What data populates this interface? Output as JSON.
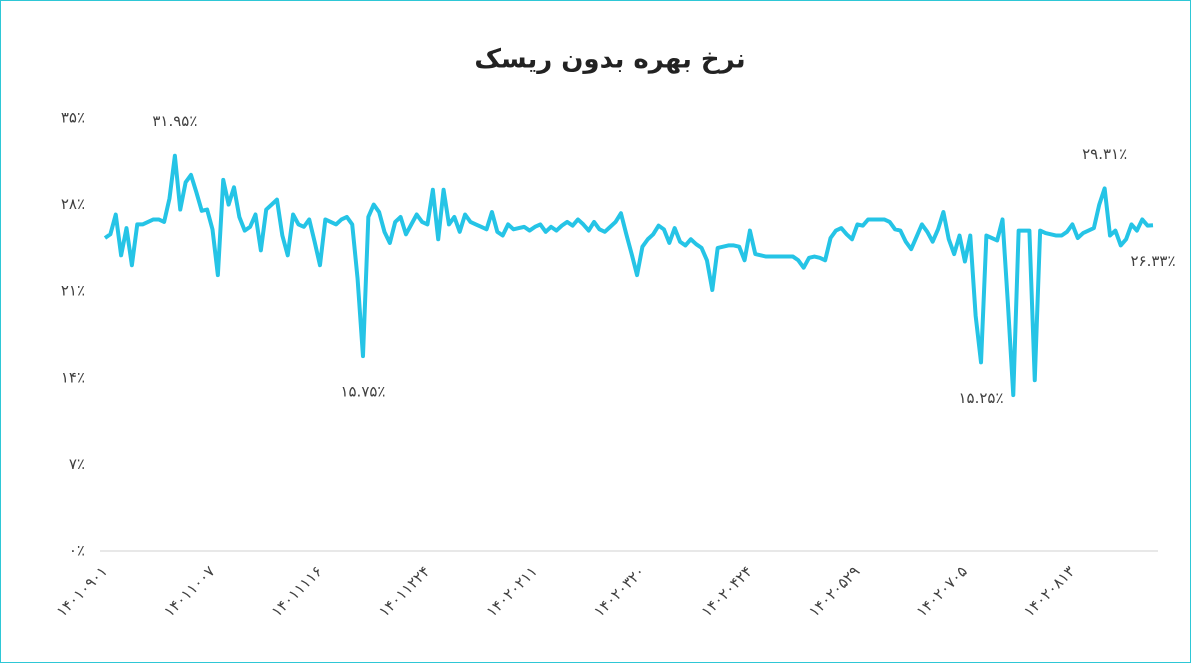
{
  "chart_data": {
    "type": "line",
    "title": "نرخ بهره بدون ریسک",
    "categories": [
      "۱۴۰۱۰۹۰۱",
      null,
      null,
      null,
      null,
      null,
      null,
      null,
      null,
      null,
      null,
      null,
      null,
      null,
      null,
      null,
      null,
      null,
      null,
      null,
      "۱۴۰۱۱۰۰۷",
      null,
      null,
      null,
      null,
      null,
      null,
      null,
      null,
      null,
      null,
      null,
      null,
      null,
      null,
      null,
      null,
      null,
      null,
      null,
      "۱۴۰۱۱۱۱۶",
      null,
      null,
      null,
      null,
      null,
      null,
      null,
      null,
      null,
      null,
      null,
      null,
      null,
      null,
      null,
      null,
      null,
      null,
      null,
      "۱۴۰۱۱۲۲۴",
      null,
      null,
      null,
      null,
      null,
      null,
      null,
      null,
      null,
      null,
      null,
      null,
      null,
      null,
      null,
      null,
      null,
      null,
      null,
      "۱۴۰۲۰۲۱۱",
      null,
      null,
      null,
      null,
      null,
      null,
      null,
      null,
      null,
      null,
      null,
      null,
      null,
      null,
      null,
      null,
      null,
      null,
      null,
      "۱۴۰۲۰۳۲۰",
      null,
      null,
      null,
      null,
      null,
      null,
      null,
      null,
      null,
      null,
      null,
      null,
      null,
      null,
      null,
      null,
      null,
      null,
      null,
      "۱۴۰۲۰۴۲۴",
      null,
      null,
      null,
      null,
      null,
      null,
      null,
      null,
      null,
      null,
      null,
      null,
      null,
      null,
      null,
      null,
      null,
      null,
      null,
      "۱۴۰۲۰۵۲۹",
      null,
      null,
      null,
      null,
      null,
      null,
      null,
      null,
      null,
      null,
      null,
      null,
      null,
      null,
      null,
      null,
      null,
      null,
      null,
      "۱۴۰۲۰۷۰۵",
      null,
      null,
      null,
      null,
      null,
      null,
      null,
      null,
      null,
      null,
      null,
      null,
      null,
      null,
      null,
      null,
      null,
      null,
      null,
      "۱۴۰۲۰۸۱۳",
      null,
      null,
      null,
      null,
      null,
      null,
      null,
      null,
      null,
      null,
      null,
      null,
      null,
      null,
      null
    ],
    "series": [
      {
        "color": "#25c4e6",
        "values": [
          25.3,
          25.6,
          27.2,
          23.9,
          26.1,
          23.1,
          26.4,
          26.4,
          26.6,
          26.8,
          26.8,
          26.6,
          28.5,
          31.95,
          27.6,
          29.8,
          30.4,
          29.0,
          27.5,
          27.6,
          26.0,
          22.3,
          30.0,
          28.0,
          29.4,
          27.0,
          25.9,
          26.2,
          27.2,
          24.3,
          27.6,
          28.0,
          28.4,
          25.5,
          23.9,
          27.2,
          26.4,
          26.2,
          26.8,
          25.0,
          23.1,
          26.8,
          26.6,
          26.4,
          26.8,
          27.0,
          26.4,
          22.0,
          15.75,
          27.0,
          28.0,
          27.4,
          25.8,
          24.9,
          26.6,
          27.0,
          25.6,
          26.4,
          27.2,
          26.6,
          26.4,
          29.2,
          25.2,
          29.2,
          26.4,
          27.0,
          25.8,
          27.2,
          26.6,
          26.4,
          26.2,
          26.0,
          27.4,
          25.8,
          25.5,
          26.4,
          26.0,
          26.1,
          26.2,
          25.9,
          26.2,
          26.4,
          25.8,
          26.2,
          25.9,
          26.3,
          26.6,
          26.3,
          26.8,
          26.4,
          25.9,
          26.6,
          26.0,
          25.8,
          26.2,
          26.6,
          27.3,
          25.6,
          24.0,
          22.3,
          24.6,
          25.2,
          25.6,
          26.3,
          26.0,
          24.9,
          26.1,
          25.0,
          24.7,
          25.2,
          24.8,
          24.5,
          23.5,
          21.1,
          24.5,
          24.6,
          24.7,
          24.7,
          24.6,
          23.5,
          25.9,
          24.0,
          23.9,
          23.8,
          23.8,
          23.8,
          23.8,
          23.8,
          23.8,
          23.5,
          22.9,
          23.7,
          23.8,
          23.7,
          23.5,
          25.3,
          25.9,
          26.1,
          25.6,
          25.2,
          26.4,
          26.3,
          26.8,
          26.8,
          26.8,
          26.8,
          26.6,
          26.0,
          25.9,
          25.0,
          24.4,
          25.4,
          26.4,
          25.8,
          25.0,
          26.0,
          27.4,
          25.2,
          24.0,
          25.5,
          23.4,
          25.5,
          19.0,
          15.25,
          25.5,
          25.3,
          25.1,
          26.8,
          20.0,
          12.6,
          25.9,
          25.9,
          25.9,
          13.8,
          25.9,
          25.7,
          25.6,
          25.5,
          25.5,
          25.8,
          26.4,
          25.3,
          25.7,
          25.9,
          26.1,
          28.0,
          29.31,
          25.5,
          25.9,
          24.7,
          25.2,
          26.4,
          25.9,
          26.8,
          26.3,
          26.33
        ],
        "value_labels": [
          null,
          null,
          null,
          null,
          null,
          null,
          null,
          null,
          null,
          null,
          null,
          null,
          null,
          "۳۱.۹۵٪",
          null,
          null,
          null,
          null,
          null,
          null,
          null,
          null,
          null,
          null,
          null,
          null,
          null,
          null,
          null,
          null,
          null,
          null,
          null,
          null,
          null,
          null,
          null,
          null,
          null,
          null,
          null,
          null,
          null,
          null,
          null,
          null,
          null,
          null,
          "۱۵.۷۵٪",
          null,
          null,
          null,
          null,
          null,
          null,
          null,
          null,
          null,
          null,
          null,
          null,
          null,
          null,
          null,
          null,
          null,
          null,
          null,
          null,
          null,
          null,
          null,
          null,
          null,
          null,
          null,
          null,
          null,
          null,
          null,
          null,
          null,
          null,
          null,
          null,
          null,
          null,
          null,
          null,
          null,
          null,
          null,
          null,
          null,
          null,
          null,
          null,
          null,
          null,
          null,
          null,
          null,
          null,
          null,
          null,
          null,
          null,
          null,
          null,
          null,
          null,
          null,
          null,
          null,
          null,
          null,
          null,
          null,
          null,
          null,
          null,
          null,
          null,
          null,
          null,
          null,
          null,
          null,
          null,
          null,
          null,
          null,
          null,
          null,
          null,
          null,
          null,
          null,
          null,
          null,
          null,
          null,
          null,
          null,
          null,
          null,
          null,
          null,
          null,
          null,
          null,
          null,
          null,
          null,
          null,
          null,
          null,
          null,
          null,
          null,
          null,
          null,
          null,
          "۱۵.۲۵٪",
          null,
          null,
          null,
          null,
          null,
          null,
          null,
          null,
          null,
          null,
          null,
          null,
          null,
          null,
          null,
          null,
          null,
          null,
          null,
          null,
          null,
          null,
          "۲۹.۳۱٪",
          null,
          null,
          null,
          null,
          null,
          null,
          null,
          null,
          "۲۶.۳۳٪"
        ]
      }
    ],
    "ylim": [
      0,
      35
    ],
    "yticks": [
      {
        "value": 0,
        "label": "۰٪"
      },
      {
        "value": 7,
        "label": "۷٪"
      },
      {
        "value": 14,
        "label": "۱۴٪"
      },
      {
        "value": 21,
        "label": "۲۱٪"
      },
      {
        "value": 28,
        "label": "۲۸٪"
      },
      {
        "value": 35,
        "label": "۳۵٪"
      }
    ],
    "grid": false
  }
}
